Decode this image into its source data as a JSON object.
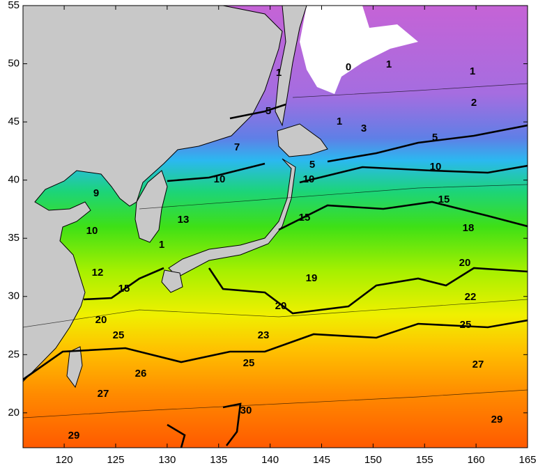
{
  "map": {
    "xlim": [
      116,
      165
    ],
    "ylim": [
      17,
      55
    ],
    "xticks": [
      120,
      125,
      130,
      135,
      140,
      145,
      150,
      155,
      160,
      165
    ],
    "yticks": [
      20,
      25,
      30,
      35,
      40,
      45,
      50,
      55
    ],
    "contour_labels": [
      1,
      0,
      1,
      1,
      2,
      5,
      1,
      3,
      7,
      5,
      5,
      10,
      10,
      10,
      9,
      15,
      10,
      13,
      15,
      18,
      1,
      12,
      19,
      20,
      15,
      20,
      22,
      20,
      25,
      25,
      23,
      25,
      27,
      26,
      27,
      30,
      29,
      29
    ]
  }
}
